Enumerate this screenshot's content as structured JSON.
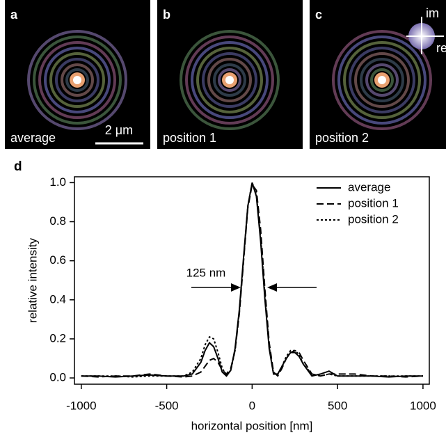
{
  "panels": [
    {
      "label": "a",
      "caption": "average"
    },
    {
      "label": "b",
      "caption": "position 1"
    },
    {
      "label": "c",
      "caption": "position 2"
    }
  ],
  "scale_bar": "2 μm",
  "phase_labels": [
    "im",
    "re"
  ],
  "chart_label": "d",
  "chart_data": {
    "type": "line",
    "xlabel": "horizontal position [nm]",
    "ylabel": "relative intensity",
    "annotation": "125 nm",
    "x": [
      -1000,
      -900,
      -800,
      -700,
      -600,
      -500,
      -400,
      -350,
      -300,
      -275,
      -250,
      -225,
      -200,
      -175,
      -150,
      -125,
      -100,
      -75,
      -50,
      -25,
      0,
      25,
      50,
      75,
      100,
      125,
      150,
      175,
      200,
      225,
      250,
      275,
      300,
      350,
      400,
      450,
      500,
      600,
      700,
      800,
      900,
      1000
    ],
    "series": [
      {
        "name": "average",
        "color": "#000000",
        "dash": "solid",
        "values": [
          0.01,
          0.01,
          0.005,
          0.01,
          0.015,
          0.01,
          0.01,
          0.02,
          0.08,
          0.14,
          0.18,
          0.16,
          0.1,
          0.03,
          0.01,
          0.04,
          0.15,
          0.35,
          0.62,
          0.88,
          1.0,
          0.93,
          0.7,
          0.4,
          0.15,
          0.02,
          0.02,
          0.06,
          0.1,
          0.13,
          0.13,
          0.11,
          0.07,
          0.01,
          0.02,
          0.035,
          0.01,
          0.01,
          0.01,
          0.005,
          0.01,
          0.01
        ]
      },
      {
        "name": "position 1",
        "color": "#000000",
        "dash": "dashed",
        "values": [
          0.01,
          0.005,
          0.01,
          0.01,
          0.02,
          0.01,
          0.005,
          0.01,
          0.03,
          0.06,
          0.09,
          0.1,
          0.08,
          0.04,
          0.02,
          0.05,
          0.14,
          0.33,
          0.6,
          0.87,
          0.99,
          0.96,
          0.76,
          0.45,
          0.18,
          0.03,
          0.01,
          0.05,
          0.1,
          0.13,
          0.14,
          0.13,
          0.09,
          0.02,
          0.01,
          0.02,
          0.02,
          0.02,
          0.01,
          0.01,
          0.005,
          0.01
        ]
      },
      {
        "name": "position 2",
        "color": "#000000",
        "dash": "dotted",
        "values": [
          0.01,
          0.01,
          0.01,
          0.005,
          0.01,
          0.01,
          0.01,
          0.03,
          0.1,
          0.17,
          0.21,
          0.2,
          0.13,
          0.05,
          0.01,
          0.04,
          0.14,
          0.34,
          0.61,
          0.88,
          1.0,
          0.94,
          0.72,
          0.42,
          0.16,
          0.02,
          0.02,
          0.06,
          0.11,
          0.14,
          0.14,
          0.12,
          0.07,
          0.02,
          0.01,
          0.02,
          0.01,
          0.01,
          0.01,
          0.01,
          0.01,
          0.01
        ]
      }
    ],
    "xlim": [
      -1040,
      1037
    ],
    "ylim": [
      -0.032,
      1.03
    ],
    "xticks": [
      -1000,
      -500,
      0,
      500,
      1000
    ],
    "yticks": [
      {
        "value": 0,
        "label": "0.0"
      },
      {
        "value": 0.2,
        "label": "0.2"
      },
      {
        "value": 0.4,
        "label": "0.4"
      },
      {
        "value": 0.6,
        "label": "0.6"
      },
      {
        "value": 0.8,
        "label": "0.8"
      },
      {
        "value": 1,
        "label": "1.0"
      }
    ],
    "grid": false,
    "legend": "upper right"
  }
}
